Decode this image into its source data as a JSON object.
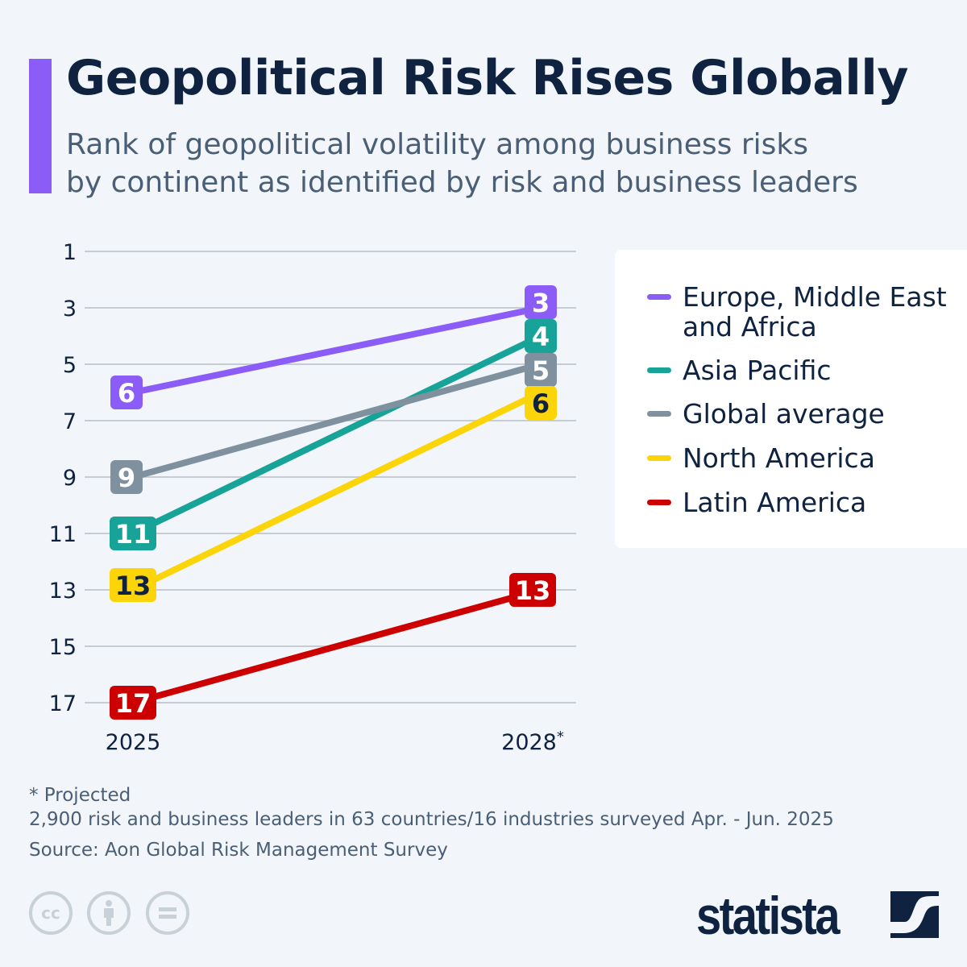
{
  "title": "Geopolitical Risk Rises Globally",
  "subtitle_lines": [
    "Rank of geopolitical volatility among business risks",
    "by continent as identified by risk and business leaders"
  ],
  "chart_data": {
    "type": "line",
    "categories": [
      "2025",
      "2028*"
    ],
    "y_ticks": [
      1,
      3,
      5,
      7,
      9,
      11,
      13,
      15,
      17
    ],
    "ylim": [
      1,
      17
    ],
    "y_reversed": true,
    "grid": true,
    "legend_position": "right",
    "series": [
      {
        "name": "Europe, Middle East and Africa",
        "name_lines": [
          "Europe, Middle East",
          "and Africa"
        ],
        "color": "#8b5cf6",
        "label_text_color": "#ffffff",
        "values": [
          6,
          3
        ]
      },
      {
        "name": "Asia Pacific",
        "color": "#17a398",
        "label_text_color": "#ffffff",
        "values": [
          11,
          4
        ]
      },
      {
        "name": "Global average",
        "color": "#7f919f",
        "label_text_color": "#ffffff",
        "values": [
          9,
          5
        ]
      },
      {
        "name": "North America",
        "color": "#fcd40a",
        "label_text_color": "#0f2340",
        "values": [
          13,
          6
        ]
      },
      {
        "name": "Latin America",
        "color": "#cc0000",
        "label_text_color": "#ffffff",
        "values": [
          17,
          13
        ]
      }
    ]
  },
  "notes": {
    "projected": "* Projected",
    "survey": "2,900 risk and business leaders in 63 countries/16 industries surveyed Apr. - Jun. 2025",
    "source": "Source: Aon Global Risk Management Survey"
  },
  "license_icons": [
    "cc-icon",
    "attribution-icon",
    "no-derivatives-icon"
  ],
  "license_text": {
    "cc": "cc"
  },
  "brand": "statista"
}
